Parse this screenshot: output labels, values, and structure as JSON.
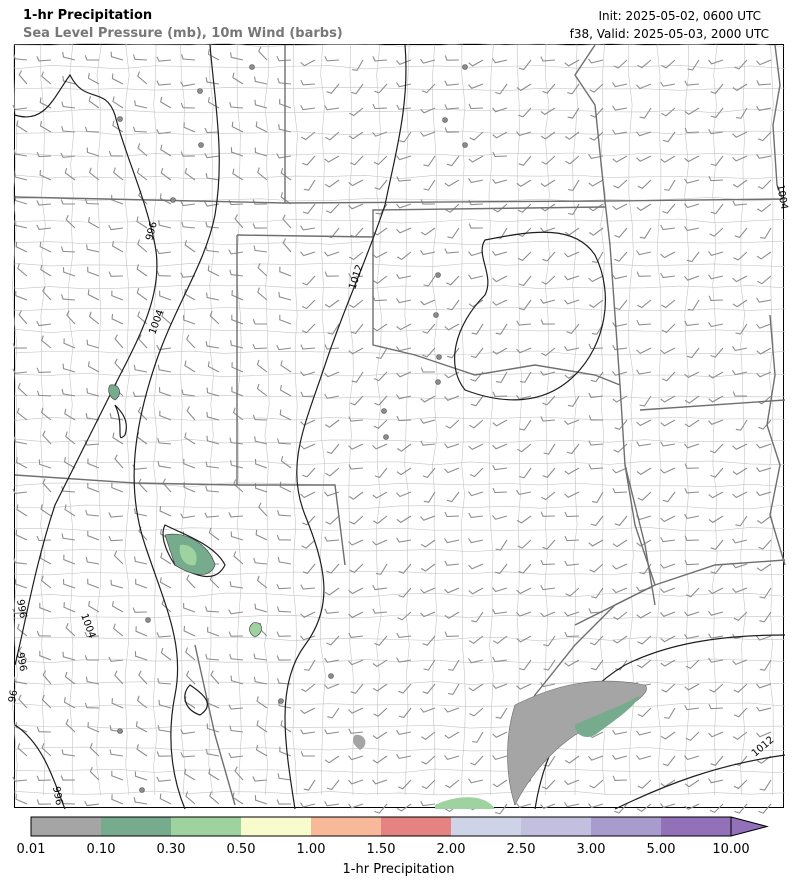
{
  "header": {
    "title": "1-hr Precipitation",
    "subtitle": "Sea Level Pressure (mb), 10m Wind (barbs)",
    "init": "Init: 2025-05-02, 0600 UTC",
    "valid": "f38, Valid: 2025-05-03, 2000 UTC"
  },
  "contour_labels": [
    "996",
    "1004",
    "1012",
    "1004",
    "996",
    "996",
    "96",
    "996",
    "1012",
    "1004"
  ],
  "colorbar": {
    "label": "1-hr Precipitation",
    "ticks": [
      "0.01",
      "0.10",
      "0.30",
      "0.50",
      "1.00",
      "1.50",
      "2.00",
      "2.50",
      "3.00",
      "5.00",
      "10.00"
    ],
    "colors": [
      "#a5a5a5",
      "#76ab8e",
      "#9ed29e",
      "#f8fbcc",
      "#f8b99a",
      "#e48381",
      "#cfd3e7",
      "#c3bfdf",
      "#a89cce",
      "#9271b9"
    ],
    "extend_color": "#9271b9"
  },
  "colors": {
    "contour": "#1e1e1e",
    "state_border": "#6f6f6f",
    "county_border": "#c4c4c4",
    "barb": "#8e8e8e"
  }
}
